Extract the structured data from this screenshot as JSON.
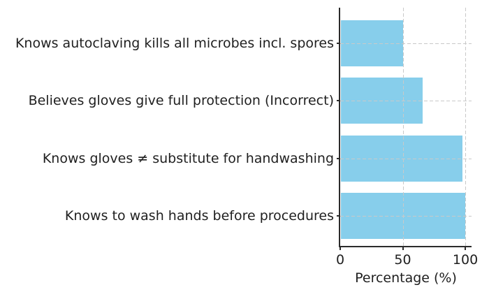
{
  "chart_data": {
    "type": "bar",
    "orientation": "horizontal",
    "title": "",
    "categories": [
      "Knows autoclaving kills all microbes incl. spores",
      "Believes gloves give full protection (Incorrect)",
      "Knows gloves ≠ substitute for handwashing",
      "Knows to wash hands before procedures"
    ],
    "values": [
      50,
      66,
      98,
      100
    ],
    "xlabel": "Percentage (%)",
    "ylabel": "",
    "xticks": [
      0,
      50,
      100
    ],
    "xlim": [
      0,
      105
    ],
    "grid": "dashed, both axes, drawn over bars",
    "legend": "none",
    "bar_color": "#87CEEB"
  },
  "colors": {
    "bar": "#87CEEB",
    "axis": "#2b2b2b",
    "text": "#1f1f1f",
    "grid": "#c9c9c9",
    "background": "#ffffff"
  }
}
